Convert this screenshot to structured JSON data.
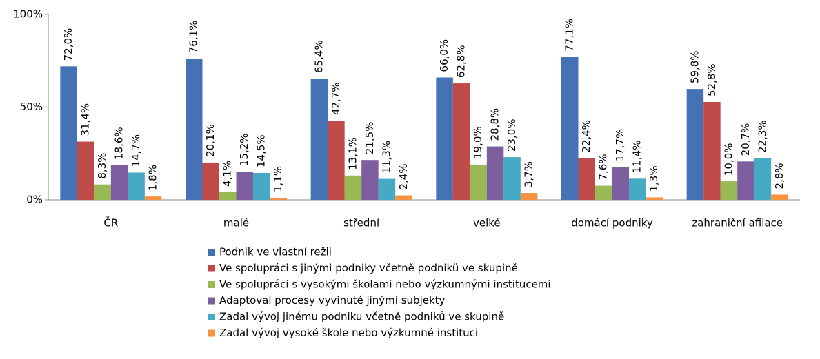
{
  "chart_data": {
    "type": "bar",
    "categories": [
      "ČR",
      "malé",
      "střední",
      "velké",
      "domácí podniky",
      "zahraniční afilace"
    ],
    "series": [
      {
        "name": "Podnik ve vlastní režii",
        "color": "#4472b4",
        "values": [
          72.0,
          76.1,
          65.4,
          66.0,
          77.1,
          59.8
        ],
        "value_labels": [
          "72,0%",
          "76,1%",
          "65,4%",
          "66,0%",
          "77,1%",
          "59,8%"
        ]
      },
      {
        "name": "Ve spolupráci s jinými podniky včetně podniků ve skupině",
        "color": "#be4b48",
        "values": [
          31.4,
          20.1,
          42.7,
          62.8,
          22.4,
          52.8
        ],
        "value_labels": [
          "31,4%",
          "20,1%",
          "42,7%",
          "62,8%",
          "22,4%",
          "52,8%"
        ]
      },
      {
        "name": "Ve spolupráci s vysokými školami nebo výzkumnými institucemi",
        "color": "#98b954",
        "values": [
          8.3,
          4.1,
          13.1,
          19.0,
          7.6,
          10.0
        ],
        "value_labels": [
          "8,3%",
          "4,1%",
          "13,1%",
          "19,0%",
          "7,6%",
          "10,0%"
        ]
      },
      {
        "name": "Adaptoval procesy vyvinuté jinými subjekty",
        "color": "#7d5fa0",
        "values": [
          18.6,
          15.2,
          21.5,
          28.8,
          17.7,
          20.7
        ],
        "value_labels": [
          "18,6%",
          "15,2%",
          "21,5%",
          "28,8%",
          "17,7%",
          "20,7%"
        ]
      },
      {
        "name": "Zadal vývoj jinému podniku včetně podniků ve skupině",
        "color": "#46aac5",
        "values": [
          14.7,
          14.5,
          11.3,
          23.0,
          11.4,
          22.3
        ],
        "value_labels": [
          "14,7%",
          "14,5%",
          "11,3%",
          "23,0%",
          "11,4%",
          "22,3%"
        ]
      },
      {
        "name": "Zadal vývoj vysoké škole  nebo výzkumné instituci",
        "color": "#f69240",
        "values": [
          1.8,
          1.1,
          2.4,
          3.7,
          1.3,
          2.8
        ],
        "value_labels": [
          "1,8%",
          "1,1%",
          "2,4%",
          "3,7%",
          "1,3%",
          "2,8%"
        ]
      }
    ],
    "ylim": [
      0,
      100
    ],
    "yticks": [
      {
        "value": 0,
        "label": "0%"
      },
      {
        "value": 50,
        "label": "50%"
      },
      {
        "value": 100,
        "label": "100%"
      }
    ],
    "grid": false,
    "legend": "bottom"
  }
}
